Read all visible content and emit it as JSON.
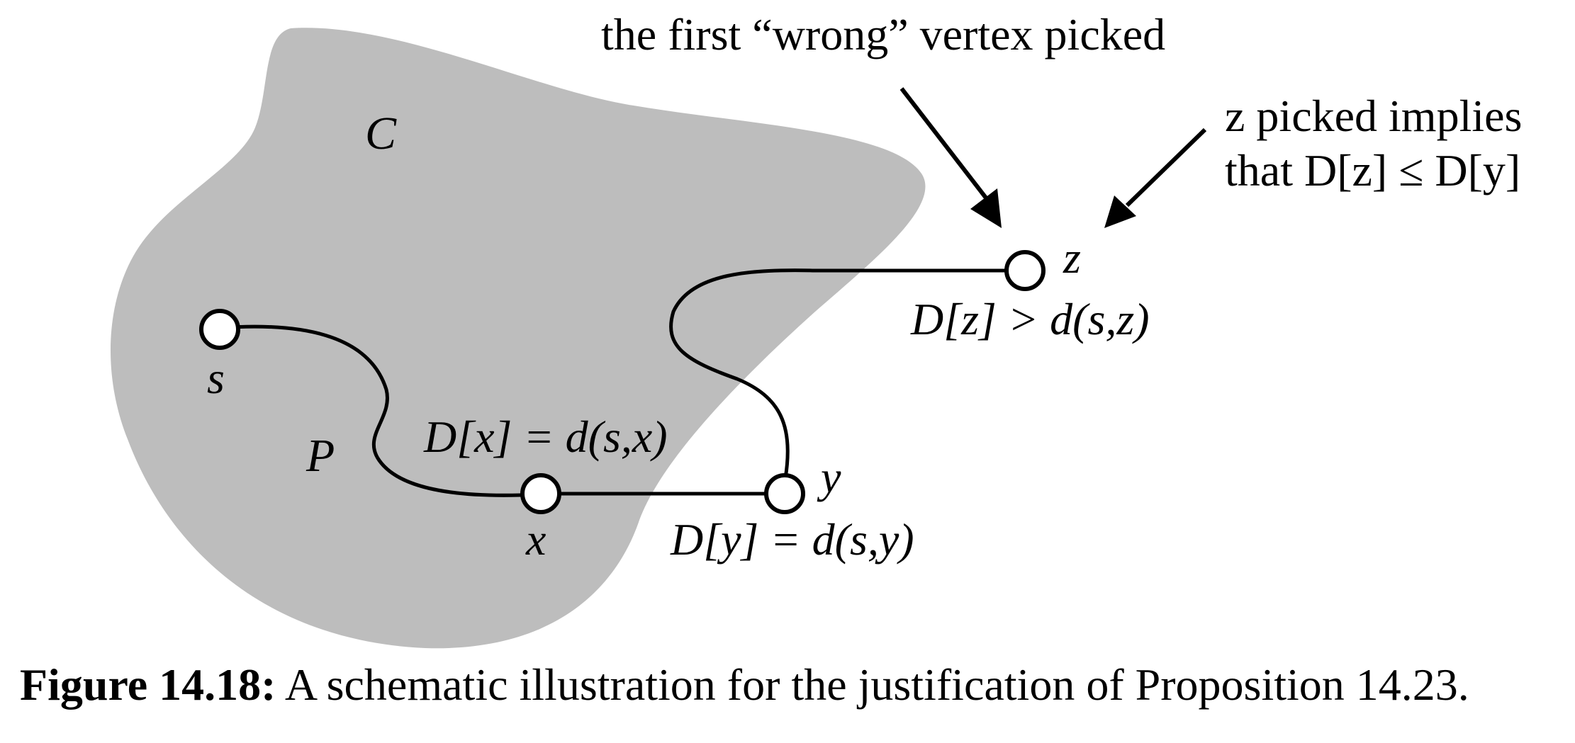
{
  "region": {
    "label": "C",
    "fill": "#bdbdbd"
  },
  "path_label": "P",
  "vertices": {
    "s": {
      "name": "s"
    },
    "x": {
      "name": "x",
      "annotation": "D[x] = d(s,x)"
    },
    "y": {
      "name": "y",
      "annotation": "D[y] = d(s,y)"
    },
    "z": {
      "name": "z",
      "annotation": "D[z] > d(s,z)"
    }
  },
  "callouts": {
    "wrong_vertex": "the first “wrong” vertex picked",
    "implies_line1": "z picked implies",
    "implies_line2": "that D[z] ≤ D[y]"
  },
  "caption": {
    "label": "Figure 14.18:",
    "text": "A schematic illustration for the justification of Proposition 14.23."
  }
}
